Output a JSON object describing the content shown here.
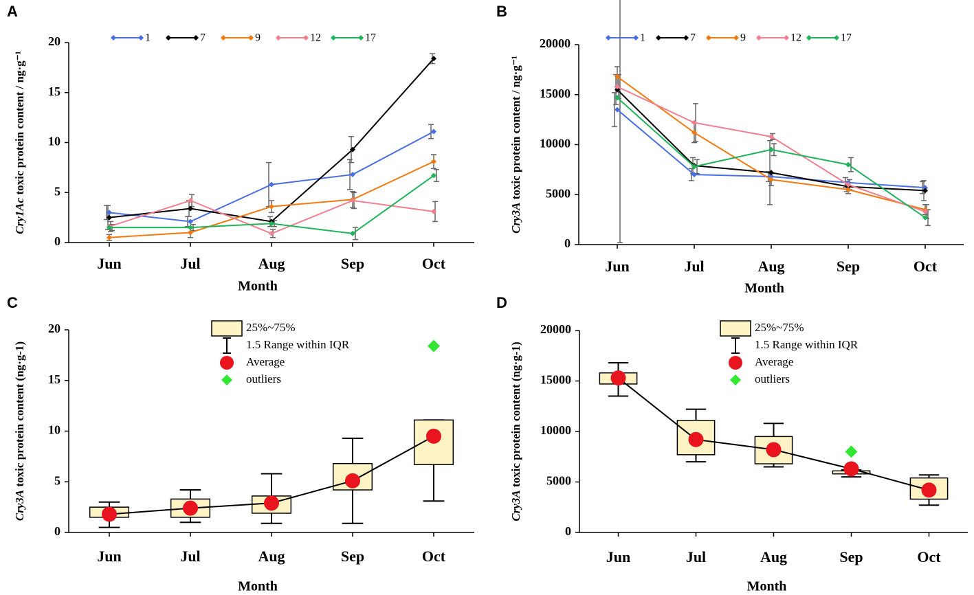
{
  "chart_data": [
    {
      "type": "line",
      "panel": "A",
      "ylabel": "Cry1Ac toxic protein content / ng·g⁻¹",
      "xlabel": "Month",
      "categories": [
        "Jun",
        "Jul",
        "Aug",
        "Sep",
        "Oct"
      ],
      "ylim": [
        0,
        20
      ],
      "yticks": [
        0,
        5,
        10,
        15,
        20
      ],
      "series": [
        {
          "name": "1",
          "color": "#4a6fe3",
          "values": [
            3.0,
            2.1,
            5.8,
            6.8,
            11.1
          ],
          "errors": [
            0.7,
            0.5,
            2.2,
            1.5,
            0.7
          ]
        },
        {
          "name": "7",
          "color": "#000000",
          "values": [
            2.5,
            3.4,
            2.1,
            9.3,
            18.4
          ],
          "errors": [
            1.2,
            0.8,
            0.5,
            1.3,
            0.5
          ]
        },
        {
          "name": "9",
          "color": "#f07a10",
          "values": [
            0.5,
            1.0,
            3.6,
            4.3,
            8.1
          ],
          "errors": [
            0.3,
            0.5,
            0.6,
            0.8,
            0.7
          ]
        },
        {
          "name": "12",
          "color": "#f08090",
          "values": [
            1.6,
            4.2,
            0.9,
            4.2,
            3.1
          ],
          "errors": [
            0.5,
            0.6,
            0.4,
            0.8,
            1.0
          ]
        },
        {
          "name": "17",
          "color": "#1fb35a",
          "values": [
            1.5,
            1.5,
            1.9,
            0.9,
            6.7
          ],
          "errors": [
            0.3,
            0.3,
            0.3,
            0.6,
            0.6
          ]
        }
      ]
    },
    {
      "type": "line",
      "panel": "B",
      "ylabel": "Cry3A toxic protein content / ng·g⁻¹",
      "xlabel": "Month",
      "categories": [
        "Jun",
        "Jul",
        "Aug",
        "Sep",
        "Oct"
      ],
      "ylim": [
        0,
        20000
      ],
      "yticks": [
        0,
        5000,
        10000,
        15000,
        20000
      ],
      "series": [
        {
          "name": "1",
          "color": "#4a6fe3",
          "values": [
            13500,
            7000,
            6800,
            6200,
            5700
          ],
          "errors": [
            1700,
            600,
            500,
            500,
            600
          ]
        },
        {
          "name": "7",
          "color": "#000000",
          "values": [
            15500,
            7900,
            7200,
            5800,
            5400
          ],
          "errors": [
            1500,
            800,
            3200,
            500,
            1000
          ]
        },
        {
          "name": "9",
          "color": "#f07a10",
          "values": [
            16800,
            11200,
            6500,
            5500,
            3500
          ],
          "errors": [
            1000,
            1000,
            600,
            400,
            500
          ]
        },
        {
          "name": "12",
          "color": "#f08090",
          "values": [
            15800,
            12200,
            10800,
            6000,
            3300
          ],
          "errors": [
            1200,
            1900,
            300,
            500,
            700
          ]
        },
        {
          "name": "17",
          "color": "#1fb35a",
          "values": [
            14700,
            7800,
            9500,
            8000,
            2700
          ],
          "errors": [
            14500,
            700,
            600,
            700,
            800
          ]
        }
      ]
    },
    {
      "type": "box",
      "panel": "C",
      "ylabel": "Cry3A toxic protein content (ng·g-1)",
      "xlabel": "Month",
      "categories": [
        "Jun",
        "Jul",
        "Aug",
        "Sep",
        "Oct"
      ],
      "ylim": [
        0,
        20
      ],
      "yticks": [
        0,
        5,
        10,
        15,
        20
      ],
      "legend": [
        "25%~75%",
        "1.5 Range within IQR",
        "Average",
        "outliers"
      ],
      "box_color": "#fdf3c4",
      "mean_color": "#e8141e",
      "outlier_color": "#33e633",
      "q1": [
        1.5,
        1.5,
        1.9,
        4.2,
        6.7
      ],
      "q3": [
        2.5,
        3.3,
        3.6,
        6.8,
        11.1
      ],
      "whislo": [
        0.5,
        1.0,
        0.9,
        0.9,
        3.1
      ],
      "whishi": [
        3.0,
        4.2,
        5.8,
        9.3,
        11.1
      ],
      "mean": [
        1.8,
        2.4,
        2.9,
        5.1,
        9.5
      ],
      "outliers": [
        null,
        null,
        null,
        null,
        18.4
      ]
    },
    {
      "type": "box",
      "panel": "D",
      "ylabel": "Cry3A toxic protein content (ng·g-1)",
      "xlabel": "Month",
      "categories": [
        "Jun",
        "Jul",
        "Aug",
        "Sep",
        "Oct"
      ],
      "ylim": [
        0,
        20000
      ],
      "yticks": [
        0,
        5000,
        10000,
        15000,
        20000
      ],
      "legend": [
        "25%~75%",
        "1.5 Range within IQR",
        "Average",
        "outliers"
      ],
      "box_color": "#fdf3c4",
      "mean_color": "#e8141e",
      "outlier_color": "#33e633",
      "q1": [
        14700,
        7700,
        6800,
        5800,
        3300
      ],
      "q3": [
        15800,
        11100,
        9500,
        6100,
        5400
      ],
      "whislo": [
        13500,
        7000,
        6500,
        5500,
        2700
      ],
      "whishi": [
        16800,
        12200,
        10800,
        6200,
        5700
      ],
      "mean": [
        15300,
        9200,
        8200,
        6300,
        4200
      ],
      "outliers": [
        null,
        null,
        null,
        8000,
        null
      ]
    }
  ]
}
